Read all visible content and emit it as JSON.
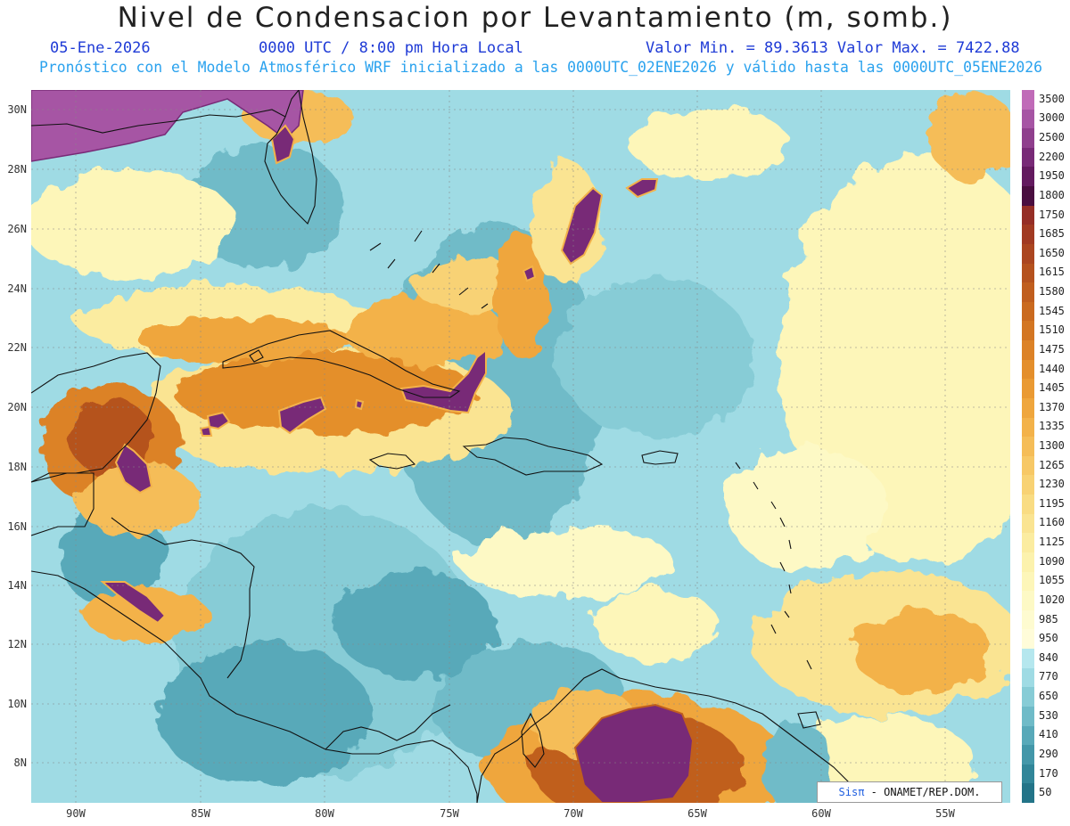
{
  "header": {
    "title": "Nivel de Condensacion por Levantamiento (m, somb.)",
    "date": "05-Ene-2026",
    "time": "0000 UTC / 8:00 pm Hora Local",
    "minmax": "Valor Min. = 89.3613  Valor Max. = 7422.88",
    "forecast": "Pronóstico con el Modelo Atmosférico WRF inicializado a las 0000UTC_02ENE2026 y válido hasta las  0000UTC_05ENE2026"
  },
  "map": {
    "lat_labels": [
      "30N",
      "28N",
      "26N",
      "24N",
      "22N",
      "20N",
      "18N",
      "16N",
      "14N",
      "12N",
      "10N",
      "8N"
    ],
    "lon_labels": [
      "90W",
      "85W",
      "80W",
      "75W",
      "70W",
      "65W",
      "60W",
      "55W"
    ]
  },
  "colorbar": {
    "labels": [
      "3500",
      "3000",
      "2500",
      "2200",
      "1950",
      "1800",
      "1750",
      "1685",
      "1650",
      "1615",
      "1580",
      "1545",
      "1510",
      "1475",
      "1440",
      "1405",
      "1370",
      "1335",
      "1300",
      "1265",
      "1230",
      "1195",
      "1160",
      "1125",
      "1090",
      "1055",
      "1020",
      "985",
      "950",
      "840",
      "770",
      "650",
      "530",
      "410",
      "290",
      "170",
      "50"
    ],
    "colors": [
      "#c06bb8",
      "#a655a4",
      "#8f3f8d",
      "#782a77",
      "#631a5f",
      "#4a0e40",
      "#952e26",
      "#a13a22",
      "#ab4620",
      "#b5521e",
      "#c05e1e",
      "#ca6a1f",
      "#d37623",
      "#dc8227",
      "#e48f2c",
      "#ea9a33",
      "#efa63d",
      "#f3b24a",
      "#f5bd58",
      "#f7c866",
      "#f8d274",
      "#f9dc83",
      "#fae492",
      "#fbeca0",
      "#fcf2ad",
      "#fdf6b9",
      "#fdf9c5",
      "#fefbd0",
      "#fffcd9",
      "#b5e7ee",
      "#9fdbe4",
      "#87ccd6",
      "#6fbbc8",
      "#58a9b9",
      "#4397a9",
      "#318699",
      "#237488"
    ]
  },
  "credit": {
    "logo": "Sisπ",
    "text": " - ONAMET/REP.DOM."
  }
}
